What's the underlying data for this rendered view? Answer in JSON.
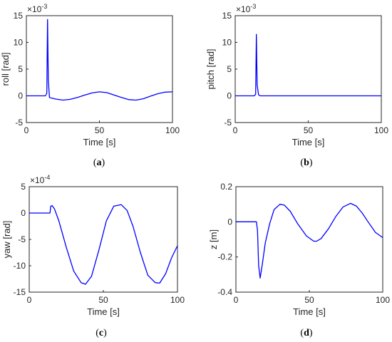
{
  "chart_data": [
    {
      "id": "a",
      "type": "line",
      "caption": "a",
      "xlabel": "Time [s]",
      "ylabel": "roll [rad]",
      "multiplier": "×10",
      "multiplier_exp": "-3",
      "xlim": [
        0,
        100
      ],
      "ylim": [
        -5,
        15
      ],
      "xticks": [
        0,
        50,
        100
      ],
      "yticks": [
        -5,
        0,
        5,
        10,
        15
      ],
      "series": [
        {
          "color": "#0000ff",
          "x": [
            0,
            13,
            14,
            14.5,
            15,
            15.8,
            17,
            20,
            25,
            30,
            35,
            40,
            45,
            50,
            55,
            60,
            65,
            70,
            75,
            80,
            85,
            90,
            95,
            100
          ],
          "y": [
            0,
            0,
            0.5,
            14.3,
            3,
            -0.3,
            -0.4,
            -0.6,
            -0.8,
            -0.65,
            -0.3,
            0.15,
            0.55,
            0.75,
            0.6,
            0.15,
            -0.3,
            -0.7,
            -0.8,
            -0.55,
            -0.05,
            0.4,
            0.7,
            0.75
          ]
        }
      ]
    },
    {
      "id": "b",
      "type": "line",
      "caption": "b",
      "xlabel": "Time [s]",
      "ylabel": "pitch [rad]",
      "multiplier": "×10",
      "multiplier_exp": "-3",
      "xlim": [
        0,
        100
      ],
      "ylim": [
        -5,
        15
      ],
      "xticks": [
        0,
        50,
        100
      ],
      "yticks": [
        -5,
        0,
        5,
        10,
        15
      ],
      "series": [
        {
          "color": "#0000ff",
          "x": [
            0,
            13,
            14,
            14.5,
            15,
            16,
            17,
            20,
            30,
            50,
            70,
            100
          ],
          "y": [
            0,
            0,
            0.3,
            11.5,
            2,
            0.2,
            0,
            0,
            0,
            0,
            0,
            0
          ]
        }
      ]
    },
    {
      "id": "c",
      "type": "line",
      "caption": "c",
      "xlabel": "Time [s]",
      "ylabel": "yaw [rad]",
      "multiplier": "×10",
      "multiplier_exp": "-4",
      "xlim": [
        0,
        100
      ],
      "ylim": [
        -15,
        5
      ],
      "xticks": [
        0,
        50,
        100
      ],
      "yticks": [
        -15,
        -10,
        -5,
        0,
        5
      ],
      "series": [
        {
          "color": "#0000ff",
          "x": [
            0,
            14,
            14.5,
            15.5,
            17,
            20,
            25,
            30,
            35,
            38,
            42,
            47,
            52,
            57,
            62,
            66,
            70,
            75,
            80,
            85,
            88,
            92,
            96,
            100
          ],
          "y": [
            0,
            0,
            1.3,
            1.4,
            0.8,
            -1.5,
            -6.5,
            -11,
            -13.2,
            -13.5,
            -12,
            -7,
            -1.5,
            1.3,
            1.6,
            0.5,
            -2.5,
            -7.5,
            -11.8,
            -13.2,
            -13.3,
            -11.5,
            -8.5,
            -6.2
          ]
        }
      ]
    },
    {
      "id": "d",
      "type": "line",
      "caption": "d",
      "xlabel": "Time [s]",
      "ylabel": "z [m]",
      "xlim": [
        0,
        100
      ],
      "ylim": [
        -0.4,
        0.2
      ],
      "xticks": [
        0,
        50,
        100
      ],
      "yticks": [
        -0.4,
        -0.2,
        0,
        0.2
      ],
      "series": [
        {
          "color": "#0000ff",
          "x": [
            0,
            14,
            14.7,
            15.5,
            16.5,
            18,
            20,
            23,
            26,
            30,
            33,
            37,
            42,
            48,
            53,
            55,
            58,
            63,
            68,
            73,
            78,
            82,
            86,
            90,
            95,
            100
          ],
          "y": [
            0,
            0,
            -0.05,
            -0.25,
            -0.32,
            -0.24,
            -0.12,
            -0.01,
            0.07,
            0.1,
            0.095,
            0.06,
            -0.01,
            -0.08,
            -0.11,
            -0.11,
            -0.095,
            -0.04,
            0.03,
            0.085,
            0.105,
            0.09,
            0.05,
            0,
            -0.06,
            -0.09
          ]
        }
      ]
    }
  ]
}
